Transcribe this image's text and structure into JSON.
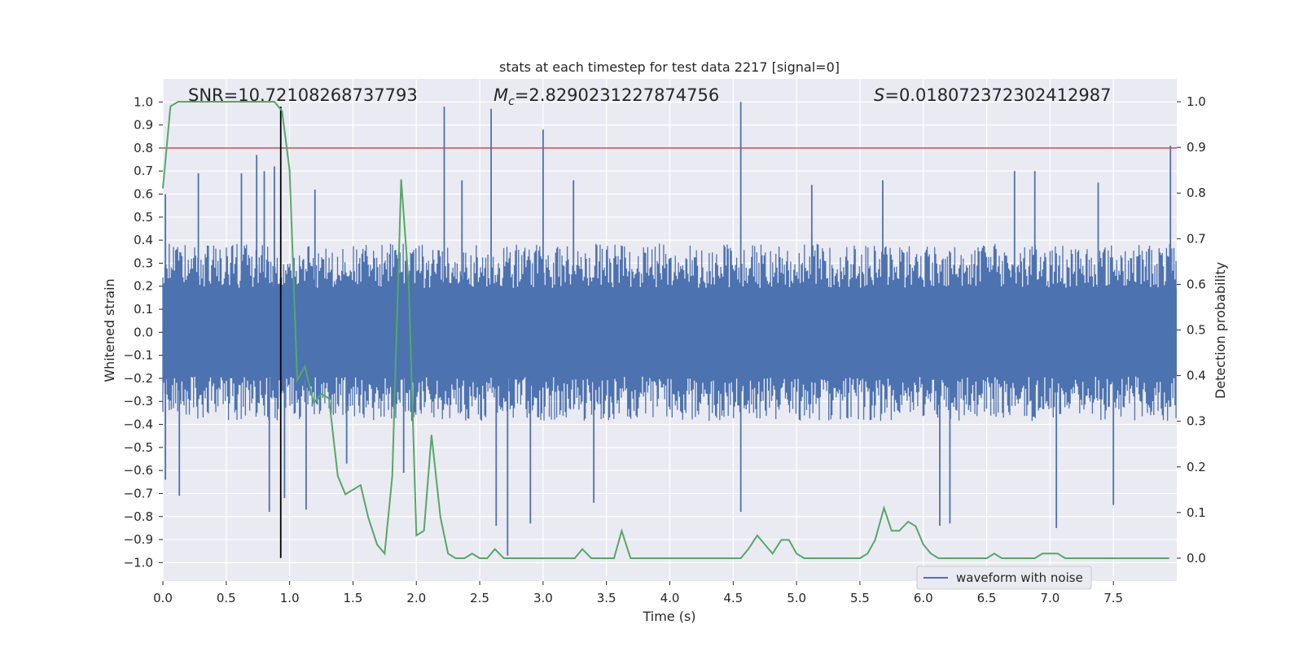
{
  "chart_data": {
    "type": "line",
    "title": "stats at each timestep for test data 2217 [signal=0]",
    "xlabel": "Time (s)",
    "ylabel_left": "Whitened strain",
    "ylabel_right": "Detection probability",
    "xlim": [
      0,
      8
    ],
    "ylim_left": [
      -1.08,
      1.1
    ],
    "ylim_right": [
      -0.05,
      1.05
    ],
    "x_ticks": [
      "0.0",
      "0.5",
      "1.0",
      "1.5",
      "2.0",
      "2.5",
      "3.0",
      "3.5",
      "4.0",
      "4.5",
      "5.0",
      "5.5",
      "6.0",
      "6.5",
      "7.0",
      "7.5"
    ],
    "x_tick_values": [
      0,
      0.5,
      1,
      1.5,
      2,
      2.5,
      3,
      3.5,
      4,
      4.5,
      5,
      5.5,
      6,
      6.5,
      7,
      7.5
    ],
    "y_left_ticks": [
      "1.0",
      "0.9",
      "0.8",
      "0.7",
      "0.6",
      "0.5",
      "0.4",
      "0.3",
      "0.2",
      "0.1",
      "0.0",
      "−0.1",
      "−0.2",
      "−0.3",
      "−0.4",
      "−0.5",
      "−0.6",
      "−0.7",
      "−0.8",
      "−0.9",
      "−1.0"
    ],
    "y_left_tick_values": [
      1.0,
      0.9,
      0.8,
      0.7,
      0.6,
      0.5,
      0.4,
      0.3,
      0.2,
      0.1,
      0.0,
      -0.1,
      -0.2,
      -0.3,
      -0.4,
      -0.5,
      -0.6,
      -0.7,
      -0.8,
      -0.9,
      -1.0
    ],
    "y_right_ticks": [
      "1.0",
      "0.9",
      "0.8",
      "0.7",
      "0.6",
      "0.5",
      "0.4",
      "0.3",
      "0.2",
      "0.1",
      "0.0"
    ],
    "y_right_tick_values": [
      1.0,
      0.9,
      0.8,
      0.7,
      0.6,
      0.5,
      0.4,
      0.3,
      0.2,
      0.1,
      0.0
    ],
    "annotations": {
      "snr": "SNR=10.72108268737793",
      "mc_symbol": "M",
      "mc_sub": "c",
      "mc_value": "=2.8290231227874756",
      "s_symbol": "S",
      "s_value": "=0.018072372302412987"
    },
    "legend": {
      "label": "waveform with noise",
      "placement": "lower-right"
    },
    "threshold_line": {
      "y": 0.8,
      "axis": "left",
      "color": "#c44e52"
    },
    "marker_line": {
      "x": 0.93,
      "y_from": -0.98,
      "y_to": 0.98,
      "color": "#000000"
    },
    "series": [
      {
        "name": "waveform with noise",
        "axis": "left",
        "color": "#4c72b0",
        "render": "dense-noise",
        "envelope_typical": 0.35,
        "x_range": [
          0,
          8
        ],
        "spikes": [
          [
            0.02,
            0.6
          ],
          [
            0.02,
            -0.64
          ],
          [
            0.13,
            -0.71
          ],
          [
            0.28,
            0.69
          ],
          [
            0.62,
            0.69
          ],
          [
            0.74,
            0.77
          ],
          [
            0.8,
            0.7
          ],
          [
            0.84,
            -0.78
          ],
          [
            0.88,
            0.72
          ],
          [
            0.96,
            -0.72
          ],
          [
            1.13,
            -0.77
          ],
          [
            1.2,
            0.62
          ],
          [
            1.45,
            -0.57
          ],
          [
            1.9,
            -0.61
          ],
          [
            2.22,
            0.98
          ],
          [
            2.36,
            0.66
          ],
          [
            2.59,
            0.97
          ],
          [
            2.63,
            -0.84
          ],
          [
            2.72,
            -0.97
          ],
          [
            2.9,
            -0.83
          ],
          [
            3.0,
            0.88
          ],
          [
            3.24,
            0.66
          ],
          [
            3.4,
            -0.74
          ],
          [
            4.56,
            1.0
          ],
          [
            4.56,
            -0.78
          ],
          [
            5.12,
            0.64
          ],
          [
            5.68,
            0.66
          ],
          [
            6.13,
            -0.84
          ],
          [
            6.21,
            -0.83
          ],
          [
            6.72,
            0.7
          ],
          [
            6.88,
            0.7
          ],
          [
            7.05,
            -0.85
          ],
          [
            7.38,
            0.65
          ],
          [
            7.5,
            -0.75
          ],
          [
            7.95,
            0.81
          ]
        ]
      },
      {
        "name": "",
        "axis": "right",
        "color": "#55a868",
        "x": [
          0.0,
          0.06,
          0.12,
          0.19,
          0.25,
          0.31,
          0.38,
          0.44,
          0.5,
          0.56,
          0.62,
          0.69,
          0.75,
          0.81,
          0.88,
          0.94,
          1.0,
          1.06,
          1.12,
          1.19,
          1.25,
          1.31,
          1.38,
          1.44,
          1.5,
          1.56,
          1.62,
          1.69,
          1.75,
          1.81,
          1.88,
          1.94,
          2.0,
          2.06,
          2.12,
          2.19,
          2.25,
          2.31,
          2.38,
          2.44,
          2.5,
          2.56,
          2.62,
          2.69,
          2.75,
          2.81,
          2.88,
          2.94,
          3.0,
          3.06,
          3.12,
          3.19,
          3.25,
          3.31,
          3.38,
          3.44,
          3.5,
          3.56,
          3.62,
          3.69,
          3.75,
          3.81,
          3.88,
          3.94,
          4.0,
          4.06,
          4.12,
          4.19,
          4.25,
          4.31,
          4.38,
          4.44,
          4.5,
          4.56,
          4.62,
          4.69,
          4.75,
          4.81,
          4.88,
          4.94,
          5.0,
          5.06,
          5.5,
          5.56,
          5.62,
          5.69,
          5.75,
          5.81,
          5.88,
          5.94,
          6.0,
          6.06,
          6.12,
          6.5,
          6.56,
          6.62,
          6.69,
          6.75,
          6.81,
          6.88,
          6.94,
          7.0,
          7.06,
          7.12,
          7.19,
          7.25,
          7.94
        ],
        "y": [
          0.81,
          0.99,
          1.0,
          1.0,
          1.0,
          1.0,
          1.0,
          1.0,
          1.0,
          1.0,
          1.0,
          1.0,
          1.0,
          1.0,
          1.0,
          0.98,
          0.85,
          0.39,
          0.42,
          0.34,
          0.36,
          0.35,
          0.18,
          0.14,
          0.15,
          0.16,
          0.09,
          0.03,
          0.01,
          0.18,
          0.83,
          0.6,
          0.05,
          0.06,
          0.27,
          0.09,
          0.01,
          0.0,
          0.0,
          0.01,
          0.0,
          0.0,
          0.02,
          0.0,
          0.0,
          0.0,
          0.0,
          0.0,
          0.0,
          0.0,
          0.0,
          0.0,
          0.0,
          0.02,
          0.0,
          0.0,
          0.0,
          0.0,
          0.06,
          0.0,
          0.0,
          0.0,
          0.0,
          0.0,
          0.0,
          0.0,
          0.0,
          0.0,
          0.0,
          0.0,
          0.0,
          0.0,
          0.0,
          0.0,
          0.02,
          0.05,
          0.03,
          0.01,
          0.04,
          0.04,
          0.01,
          0.0,
          0.0,
          0.01,
          0.04,
          0.11,
          0.06,
          0.06,
          0.08,
          0.07,
          0.03,
          0.01,
          0.0,
          0.0,
          0.01,
          0.0,
          0.0,
          0.0,
          0.0,
          0.0,
          0.01,
          0.01,
          0.01,
          0.0,
          0.0,
          0.0,
          0.0
        ]
      }
    ]
  }
}
